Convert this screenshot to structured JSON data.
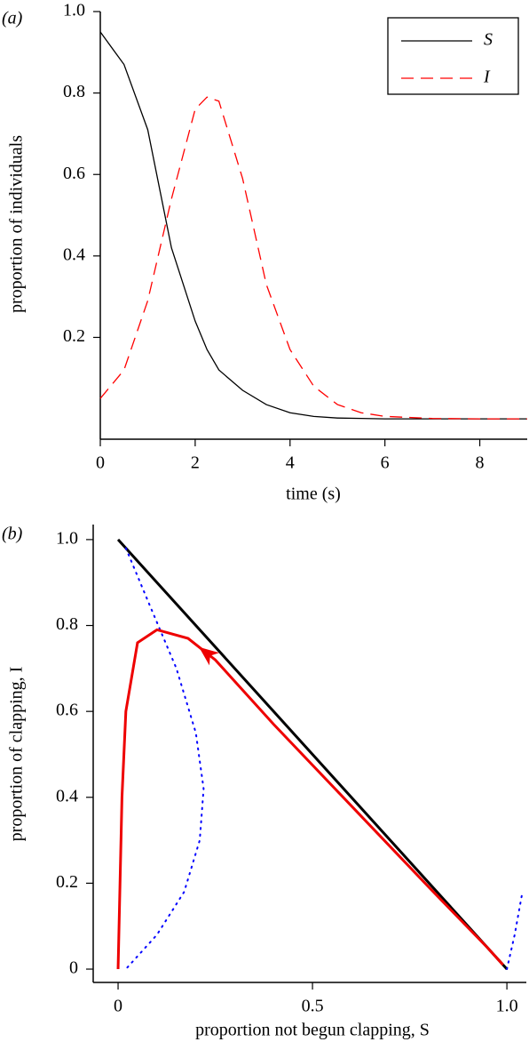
{
  "chart_data": [
    {
      "type": "line",
      "panel_label": "(a)",
      "xlabel": "time (s)",
      "ylabel": "proportion of individuals",
      "x": [
        0,
        0.5,
        1,
        1.5,
        2,
        2.25,
        2.5,
        3,
        3.5,
        4,
        4.5,
        5,
        5.5,
        6,
        7,
        8,
        9
      ],
      "series": [
        {
          "name": "S",
          "color": "#000000",
          "dash": "solid",
          "values": [
            0.95,
            0.87,
            0.71,
            0.42,
            0.24,
            0.17,
            0.12,
            0.07,
            0.035,
            0.015,
            0.006,
            0.002,
            0.001,
            0,
            0,
            0,
            0
          ]
        },
        {
          "name": "I",
          "color": "#ff0000",
          "dash": "dashed",
          "values": [
            0.05,
            0.12,
            0.29,
            0.54,
            0.76,
            0.79,
            0.78,
            0.59,
            0.33,
            0.17,
            0.08,
            0.035,
            0.015,
            0.006,
            0.001,
            0,
            0
          ]
        }
      ],
      "xlim": [
        0,
        9
      ],
      "xticks": [
        0,
        2,
        4,
        6,
        8
      ],
      "ylim": [
        -0.05,
        1.0
      ],
      "yticks": [
        0.2,
        0.4,
        0.6,
        0.8,
        {
          "value": 1.0,
          "label": "1.0"
        }
      ],
      "legend": "upper right"
    },
    {
      "type": "line",
      "panel_label": "(b)",
      "xlabel": "proportion not begun clapping, S",
      "ylabel": "proportion of clapping, I",
      "series": [
        {
          "color": "#000000",
          "dash": "solid",
          "width": 3,
          "x": [
            0,
            1
          ],
          "values": [
            1,
            0
          ]
        },
        {
          "color": "#0000ff",
          "dash": "dotted",
          "width": 2,
          "x": [
            0.02,
            0.08,
            0.15,
            0.2,
            0.22,
            0.21,
            0.17,
            0.1,
            0.02,
            null,
            1.0,
            1.02,
            1.04
          ],
          "values": [
            0.98,
            0.85,
            0.7,
            0.55,
            0.42,
            0.3,
            0.18,
            0.08,
            0,
            null,
            0,
            0.08,
            0.18
          ]
        },
        {
          "color": "#ee0000",
          "dash": "solid",
          "width": 3,
          "arrow": true,
          "x": [
            0.99,
            0.95,
            0.8,
            0.6,
            0.4,
            0.25,
            0.18,
            0.1,
            0.05,
            0.02,
            0.01,
            0.005,
            0
          ],
          "values": [
            0.01,
            0.05,
            0.19,
            0.38,
            0.57,
            0.72,
            0.77,
            0.79,
            0.76,
            0.6,
            0.4,
            0.2,
            0
          ]
        }
      ],
      "xlim": [
        -0.064,
        1.05
      ],
      "xticks": [
        0,
        0.5,
        {
          "value": 1.0,
          "label": "1.0"
        }
      ],
      "ylim": [
        -0.031,
        1.035
      ],
      "yticks": [
        0,
        0.2,
        0.4,
        0.6,
        0.8,
        {
          "value": 1.0,
          "label": "1.0"
        }
      ]
    }
  ]
}
